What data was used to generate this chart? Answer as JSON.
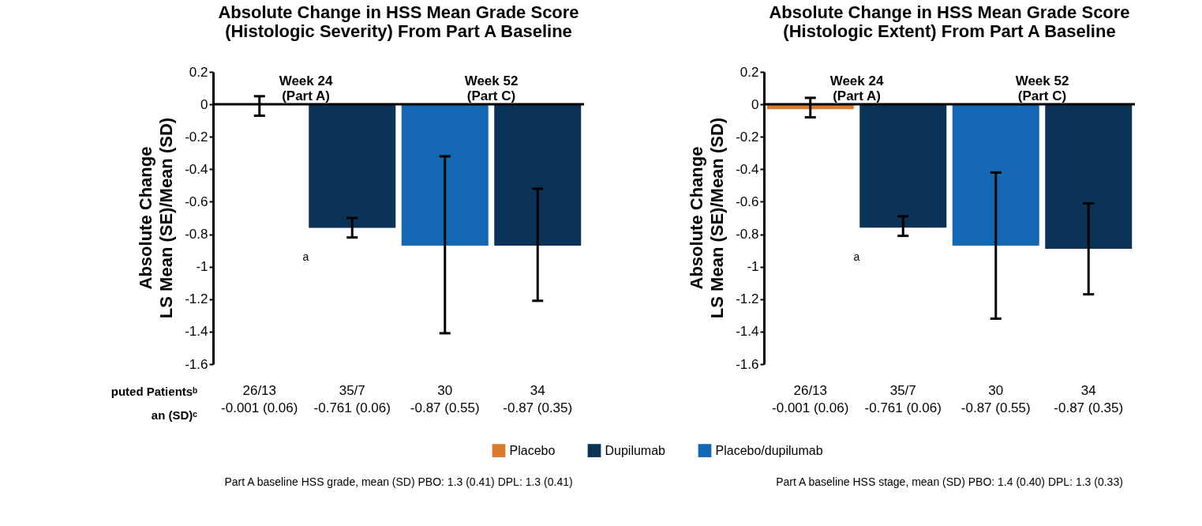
{
  "chart_data": [
    {
      "type": "bar",
      "title": "Absolute Change in HSS Mean Grade Score\n(Histologic Severity) From Part A Baseline",
      "ylabel": "Absolute Change\nLS Mean (SE)/Mean (SD)",
      "categories": [
        "26/13\n-0.001 (0.06)",
        "35/7\n-0.761 (0.06)",
        "30\n-0.87 (0.55)",
        "34\n-0.87 (0.35)"
      ],
      "series": [
        {
          "name": "Placebo",
          "color": "#dd7a2b",
          "values": [
            -0.001,
            null,
            null,
            null
          ],
          "errors": [
            [
              -0.07,
              0.05
            ],
            null,
            null,
            null
          ]
        },
        {
          "name": "Dupilumab",
          "color": "#0b3358",
          "values": [
            null,
            -0.761,
            null,
            -0.87
          ],
          "errors": [
            null,
            [
              -0.82,
              -0.7
            ],
            null,
            [
              -1.21,
              -0.52
            ]
          ]
        },
        {
          "name": "Placebo/dupilumab",
          "color": "#1467b3",
          "values": [
            null,
            null,
            -0.87,
            null
          ],
          "errors": [
            null,
            null,
            [
              -1.41,
              -0.32
            ],
            null
          ]
        }
      ],
      "ylim": [
        -1.6,
        0.2
      ],
      "yticks": [
        0.2,
        0,
        -0.2,
        -0.4,
        -0.6,
        -0.8,
        -1,
        -1.2,
        -1.4,
        -1.6
      ],
      "legend": "bottom",
      "annotations": [
        "Week 24\n(Part A)",
        "Week 52\n(Part C)",
        "a",
        "Part A baseline HSS grade, mean (SD)   PBO: 1.3 (0.41)   DPL: 1.3 (0.41)",
        "puted Patientsᵇ",
        "an (SD)ᶜ"
      ]
    },
    {
      "type": "bar",
      "title": "Absolute Change in HSS Mean Grade Score\n(Histologic Extent) From Part A Baseline",
      "ylabel": "Absolute Change\nLS Mean (SE)/Mean (SD)",
      "categories": [
        "26/13\n-0.001 (0.06)",
        "35/7\n-0.761 (0.06)",
        "30\n-0.87 (0.55)",
        "34\n-0.87 (0.35)"
      ],
      "series": [
        {
          "name": "Placebo",
          "color": "#dd7a2b",
          "values": [
            -0.03,
            null,
            null,
            null
          ],
          "errors": [
            [
              -0.08,
              0.04
            ],
            null,
            null,
            null
          ]
        },
        {
          "name": "Dupilumab",
          "color": "#0b3358",
          "values": [
            null,
            -0.76,
            null,
            -0.89
          ],
          "errors": [
            null,
            [
              -0.81,
              -0.69
            ],
            null,
            [
              -1.17,
              -0.61
            ]
          ]
        },
        {
          "name": "Placebo/dupilumab",
          "color": "#1467b3",
          "values": [
            null,
            null,
            -0.87,
            null
          ],
          "errors": [
            null,
            null,
            [
              -1.32,
              -0.42
            ],
            null
          ]
        }
      ],
      "ylim": [
        -1.6,
        0.2
      ],
      "yticks": [
        0.2,
        0,
        -0.2,
        -0.4,
        -0.6,
        -0.8,
        -1,
        -1.2,
        -1.4,
        -1.6
      ],
      "legend": false,
      "annotations": [
        "Week 24\n(Part A)",
        "Week 52\n(Part C)",
        "a",
        "Part A baseline HSS stage, mean (SD)   PBO: 1.4 (0.40)   DPL: 1.3 (0.33)"
      ]
    }
  ]
}
